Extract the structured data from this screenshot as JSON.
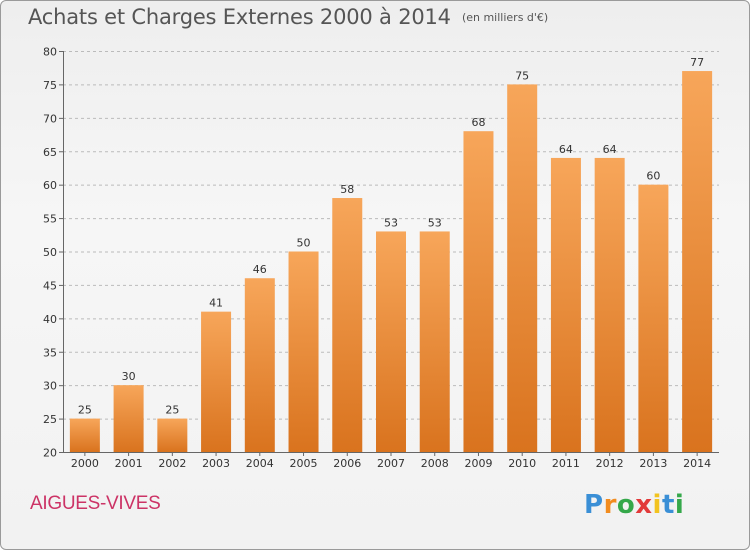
{
  "header": {
    "title": "Achats et Charges Externes 2000 à 2014",
    "subtitle": "(en milliers d'€)"
  },
  "footer": {
    "commune": "AIGUES-VIVES",
    "brand": "Proxiti"
  },
  "colors": {
    "bar_top": "#f7a65a",
    "bar_bottom": "#d9731e",
    "title": "#555555",
    "commune": "#cc3366",
    "grid": "#bbbbbb"
  },
  "chart_data": {
    "type": "bar",
    "categories": [
      "2000",
      "2001",
      "2002",
      "2003",
      "2004",
      "2005",
      "2006",
      "2007",
      "2008",
      "2009",
      "2010",
      "2011",
      "2012",
      "2013",
      "2014"
    ],
    "values": [
      25,
      30,
      25,
      41,
      46,
      50,
      58,
      53,
      53,
      68,
      75,
      64,
      64,
      60,
      77
    ],
    "ylim": [
      20,
      80
    ],
    "yticks": [
      20,
      25,
      30,
      35,
      40,
      45,
      50,
      55,
      60,
      65,
      70,
      75,
      80
    ],
    "grid": true,
    "data_labels": true
  }
}
